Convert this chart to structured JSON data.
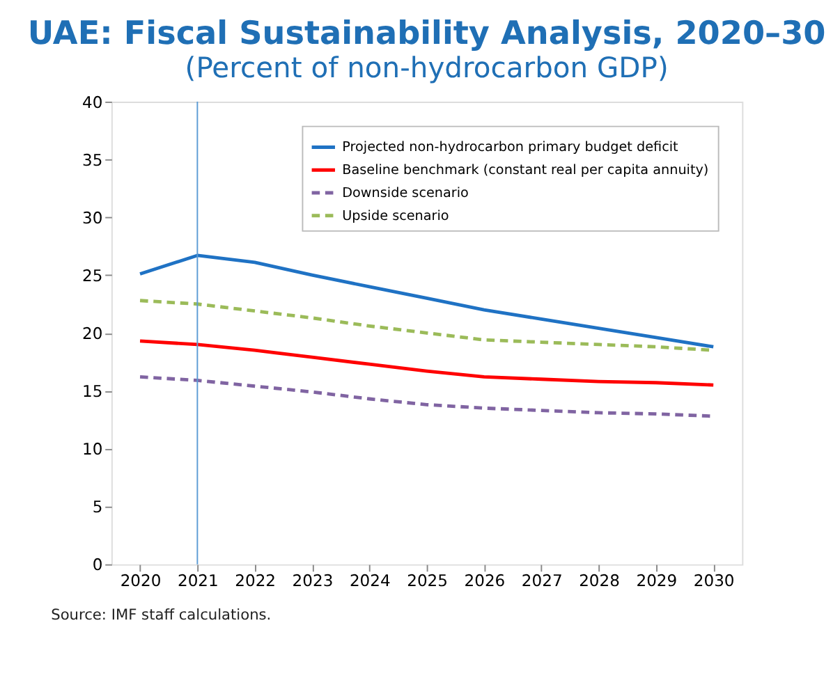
{
  "chart_data": {
    "type": "line",
    "title": "UAE: Fiscal Sustainability Analysis, 2020–30",
    "subtitle": "(Percent of non-hydrocarbon GDP)",
    "categories": [
      "2020",
      "2021",
      "2022",
      "2023",
      "2024",
      "2025",
      "2026",
      "2027",
      "2028",
      "2029",
      "2030"
    ],
    "series": [
      {
        "name": "Projected non-hydrocarbon primary budget deficit",
        "color": "#1f72c4",
        "line_style": "solid",
        "values": [
          25.1,
          26.7,
          26.1,
          25.0,
          24.0,
          23.0,
          22.0,
          21.2,
          20.4,
          19.6,
          18.8
        ]
      },
      {
        "name": "Baseline benchmark (constant real per capita annuity)",
        "color": "#ff0000",
        "line_style": "solid",
        "values": [
          19.3,
          19.0,
          18.5,
          17.9,
          17.3,
          16.7,
          16.2,
          16.0,
          15.8,
          15.7,
          15.5
        ]
      },
      {
        "name": "Downside scenario",
        "color": "#8064a2",
        "line_style": "dashed",
        "values": [
          16.2,
          15.9,
          15.4,
          14.9,
          14.3,
          13.8,
          13.5,
          13.3,
          13.1,
          13.0,
          12.8
        ]
      },
      {
        "name": "Upside scenario",
        "color": "#9bbb59",
        "line_style": "dashed",
        "values": [
          22.8,
          22.5,
          21.9,
          21.3,
          20.6,
          20.0,
          19.4,
          19.2,
          19.0,
          18.8,
          18.5
        ]
      }
    ],
    "ylim": [
      0,
      40
    ],
    "yticks": [
      0,
      5,
      10,
      15,
      20,
      25,
      30,
      35,
      40
    ],
    "ref_lines": [
      {
        "axis": "x",
        "value": "2021",
        "color": "#5b9bd5"
      }
    ],
    "grid": false,
    "legend": "top right",
    "annotations": [
      "Source: IMF staff calculations."
    ]
  }
}
